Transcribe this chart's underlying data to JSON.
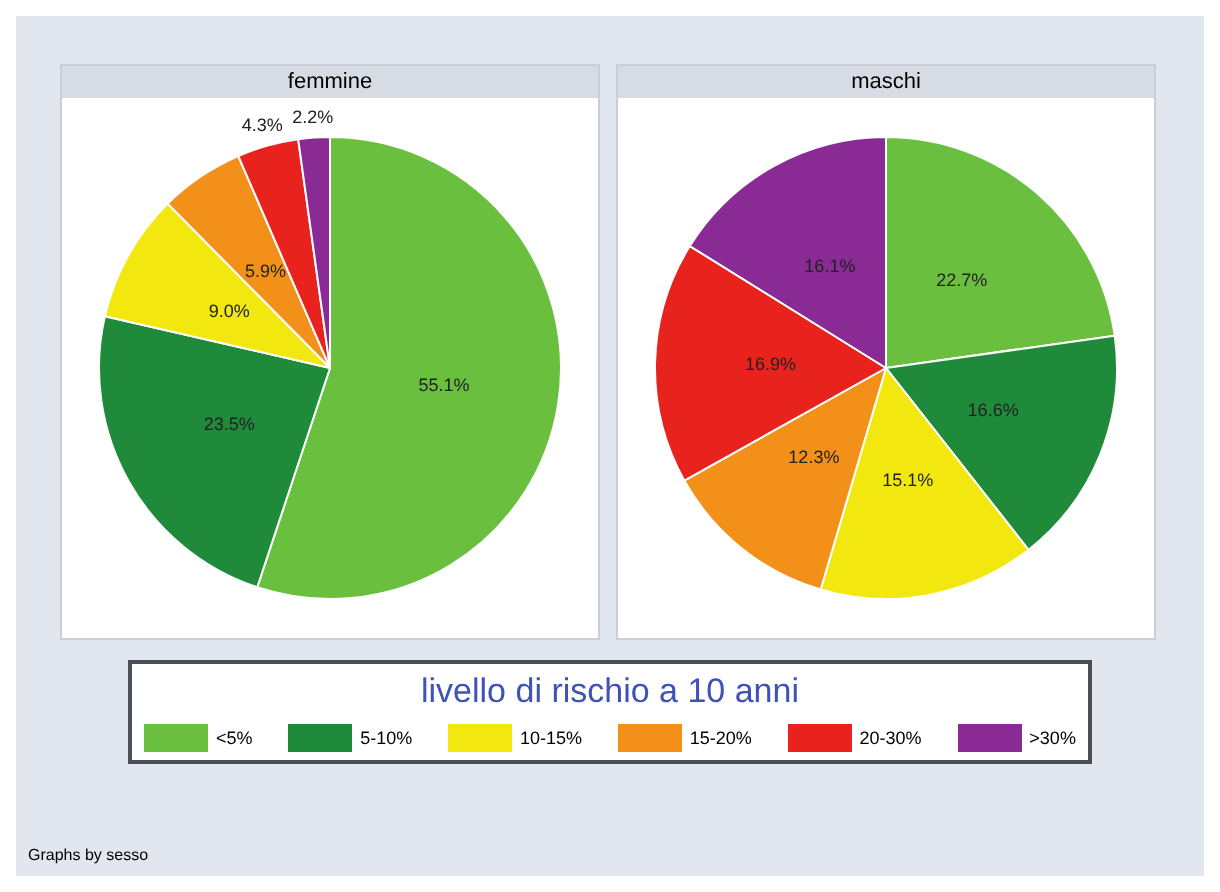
{
  "chart_data": [
    {
      "type": "pie",
      "title": "femmine",
      "categories": [
        "<5%",
        "5-10%",
        "10-15%",
        "15-20%",
        "20-30%",
        ">30%"
      ],
      "colors": [
        "#6abf3e",
        "#1e8a3a",
        "#f2e80f",
        "#f39019",
        "#e8231d",
        "#8a2a94"
      ],
      "values": [
        55.1,
        23.5,
        9.0,
        5.9,
        4.3,
        2.2
      ],
      "value_labels": [
        "55.1%",
        "23.5%",
        "9.0%",
        "5.9%",
        "4.3%",
        "2.2%"
      ],
      "legend": "bottom",
      "legend_title": "livello di rischio a 10 anni"
    },
    {
      "type": "pie",
      "title": "maschi",
      "categories": [
        null,
        null,
        null,
        null,
        null,
        null
      ],
      "colors": [
        "#6abf3e",
        "#1e8a3a",
        "#f2e80f",
        "#f39019",
        "#e8231d",
        "#8a2a94"
      ],
      "values": [
        22.7,
        16.6,
        15.1,
        12.3,
        16.9,
        16.1
      ],
      "value_labels": [
        "22.7%",
        "16.6%",
        "15.1%",
        "12.3%",
        "16.9%",
        "16.1%"
      ],
      "annotations": [
        "Graphs by sesso"
      ]
    }
  ]
}
